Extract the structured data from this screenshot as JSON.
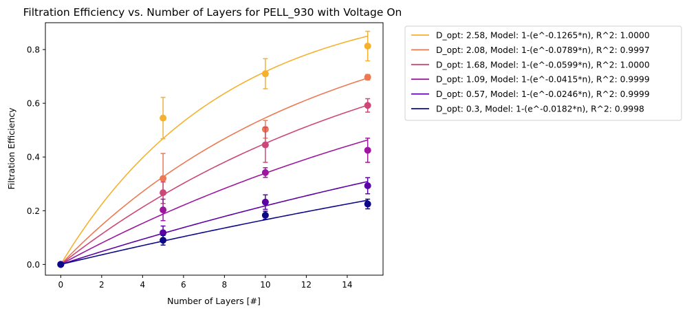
{
  "chart_data": {
    "type": "line",
    "title": "Filtration Efficiency vs. Number of Layers for PELL_930 with Voltage On",
    "xlabel": "Number of Layers [#]",
    "ylabel": "Filtration Efficiency",
    "xlim": [
      -0.75,
      15.75
    ],
    "ylim": [
      -0.04,
      0.9
    ],
    "xticks": [
      0,
      2,
      4,
      6,
      8,
      10,
      12,
      14
    ],
    "yticks": [
      0.0,
      0.2,
      0.4,
      0.6,
      0.8
    ],
    "xtick_labels": [
      "0",
      "2",
      "4",
      "6",
      "8",
      "10",
      "12",
      "14"
    ],
    "ytick_labels": [
      "0.0",
      "0.2",
      "0.4",
      "0.6",
      "0.8"
    ],
    "grid": false,
    "legend_position": "outside-right-top",
    "x": [
      0,
      5,
      10,
      15
    ],
    "series": [
      {
        "name": "D_opt: 2.58, Model: 1-(e^-0.1265*n), R^2: 1.0000",
        "color": "#f5b12e",
        "k": 0.1265,
        "values": [
          0.0,
          0.545,
          0.71,
          0.813
        ],
        "errors": [
          0.0,
          0.077,
          0.056,
          0.055
        ]
      },
      {
        "name": "D_opt: 2.08, Model: 1-(e^-0.0789*n), R^2: 0.9997",
        "color": "#ed7953",
        "k": 0.0789,
        "values": [
          0.0,
          0.32,
          0.503,
          0.697
        ],
        "errors": [
          0.0,
          0.093,
          0.033,
          0.01
        ]
      },
      {
        "name": "D_opt: 1.68, Model: 1-(e^-0.0599*n), R^2: 1.0000",
        "color": "#cc4778",
        "k": 0.0599,
        "values": [
          0.0,
          0.267,
          0.445,
          0.592
        ],
        "errors": [
          0.0,
          0.04,
          0.065,
          0.025
        ]
      },
      {
        "name": "D_opt: 1.09, Model: 1-(e^-0.0415*n), R^2: 0.9999",
        "color": "#9c179e",
        "k": 0.0415,
        "values": [
          0.0,
          0.203,
          0.342,
          0.425
        ],
        "errors": [
          0.0,
          0.04,
          0.018,
          0.045
        ]
      },
      {
        "name": "D_opt: 0.57, Model: 1-(e^-0.0246*n), R^2: 0.9999",
        "color": "#5c01a6",
        "k": 0.0246,
        "values": [
          0.0,
          0.118,
          0.232,
          0.293
        ],
        "errors": [
          0.0,
          0.025,
          0.027,
          0.03
        ]
      },
      {
        "name": "D_opt: 0.3, Model: 1-(e^-0.0182*n), R^2: 0.9998",
        "color": "#0d0887",
        "k": 0.0182,
        "values": [
          0.0,
          0.09,
          0.183,
          0.225
        ],
        "errors": [
          0.0,
          0.018,
          0.015,
          0.018
        ]
      }
    ]
  }
}
